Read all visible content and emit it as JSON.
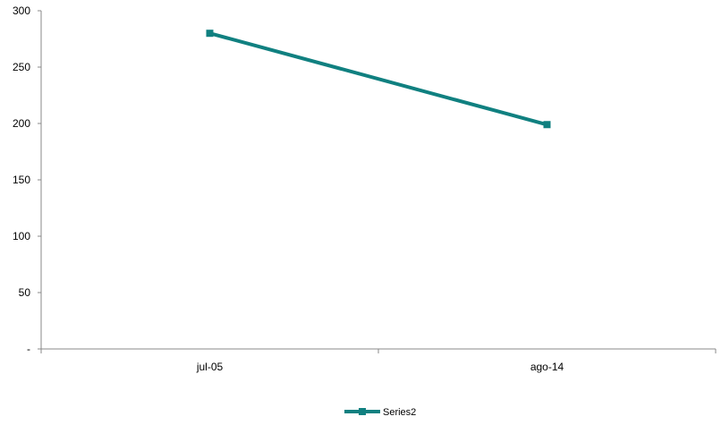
{
  "chart_data": {
    "type": "line",
    "categories": [
      "jul-05",
      "ago-14"
    ],
    "series": [
      {
        "name": "Series2",
        "values": [
          280,
          199
        ],
        "color": "#108080"
      }
    ],
    "y_tick_labels": [
      "-",
      "50",
      "100",
      "150",
      "200",
      "250",
      "300"
    ],
    "ylim": [
      0,
      300
    ],
    "grid": false,
    "legend_position": "bottom-center",
    "title": "",
    "xlabel": "",
    "ylabel": ""
  }
}
